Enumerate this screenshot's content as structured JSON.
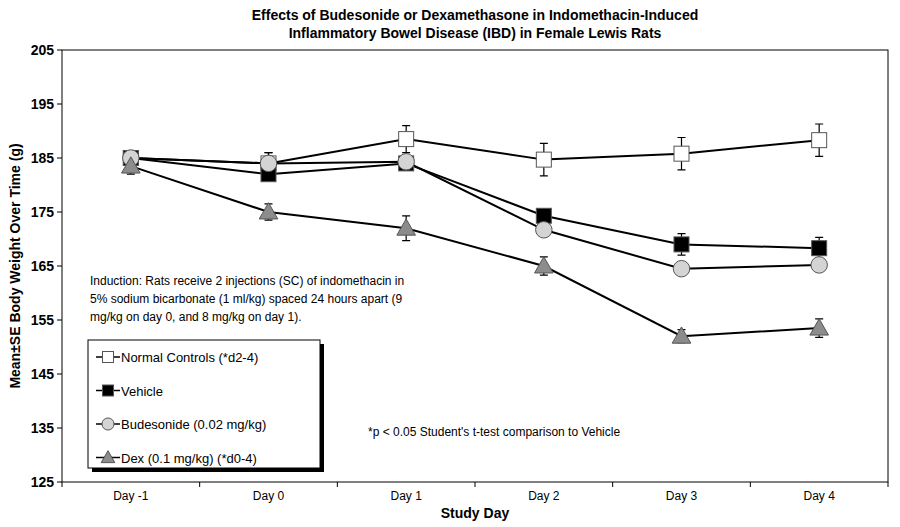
{
  "chart_data": {
    "type": "line",
    "title": [
      "Effects of Budesonide or Dexamethasone in Indomethacin-Induced",
      "Inflammatory Bowel Disease (IBD) in Female Lewis Rats"
    ],
    "x_label": "Study Day",
    "y_label": "Mean±SE Body Weight Over Time (g)",
    "categories": [
      "Day -1",
      "Day 0",
      "Day 1",
      "Day 2",
      "Day 3",
      "Day 4"
    ],
    "ylim": [
      125,
      205
    ],
    "yticks": [
      125,
      135,
      145,
      155,
      165,
      175,
      185,
      195,
      205
    ],
    "legend": "bottom-left",
    "annotations": [
      "Induction: Rats receive 2 injections (SC) of indomethacin in",
      "5% sodium bicarbonate (1 ml/kg) spaced 24 hours apart (9",
      "mg/kg on day 0, and 8 mg/kg on day 1).",
      "*p < 0.05 Student's t-test comparison to Vehicle"
    ],
    "series": [
      {
        "name": "Normal Controls (*d2-4)",
        "color": "#ffffff",
        "marker": "square",
        "values": [
          185,
          184,
          188.5,
          184.7,
          185.8,
          188.3
        ],
        "errors": [
          1,
          2,
          2.5,
          3,
          3,
          3
        ]
      },
      {
        "name": "Vehicle",
        "color": "#000000",
        "marker": "square",
        "values": [
          185,
          182,
          184,
          174.3,
          169,
          168.3
        ],
        "errors": [
          1,
          1,
          1,
          1,
          2,
          2
        ]
      },
      {
        "name": "Budesonide (0.02 mg/kg)",
        "color": "#d4d4d4",
        "marker": "circle",
        "values": [
          185,
          184,
          184.3,
          171.7,
          164.5,
          165.2
        ],
        "errors": [
          1,
          2,
          1,
          1,
          1,
          1
        ]
      },
      {
        "name": "Dex (0.1 mg/kg) (*d0-4)",
        "color": "#8c8c8c",
        "marker": "triangle",
        "values": [
          183.5,
          175,
          172,
          165,
          152,
          153.5
        ],
        "errors": [
          1.5,
          1.5,
          2.3,
          1.7,
          1.2,
          1.7
        ]
      }
    ]
  }
}
